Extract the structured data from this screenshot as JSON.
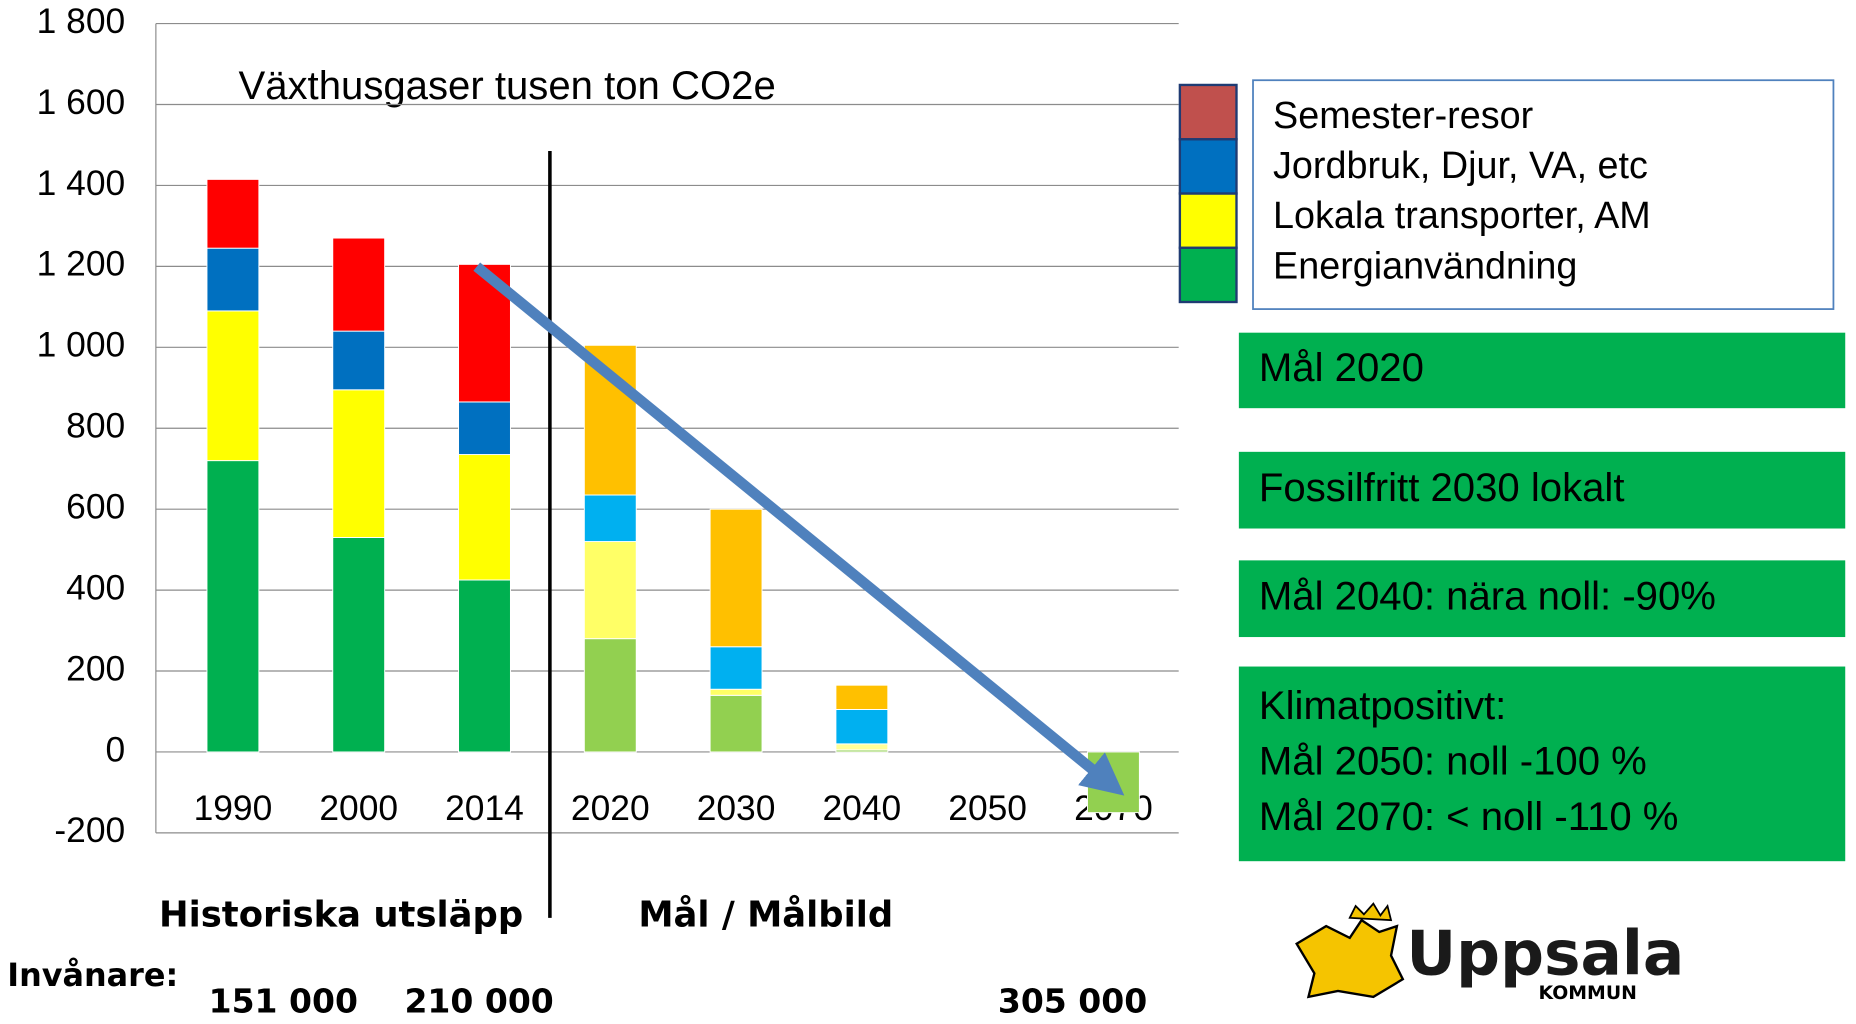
{
  "chart_data": {
    "type": "bar",
    "stacked": true,
    "title": "Växthusgaser tusen ton CO2e",
    "categories": [
      "1990",
      "2000",
      "2014",
      "2020",
      "2030",
      "2040",
      "2050",
      "2070"
    ],
    "series": [
      {
        "name": "Energianvändning",
        "color": "#00b050",
        "colors": [
          "#00b050",
          "#00b050",
          "#00b050",
          "#92d050",
          "#92d050",
          "#92d050",
          "#92d050",
          "#92d050"
        ],
        "values": [
          720,
          530,
          425,
          280,
          140,
          5,
          0,
          -150
        ]
      },
      {
        "name": "Lokala transporter, AM",
        "color": "#ffff00",
        "colors": [
          "#ffff00",
          "#ffff00",
          "#ffff00",
          "#ffff66",
          "#ffff66",
          "#ffff99",
          "#ffff66",
          "#ffff66"
        ],
        "values": [
          370,
          365,
          310,
          240,
          15,
          15,
          0,
          0
        ]
      },
      {
        "name": "Jordbruk, Djur, VA, etc",
        "color": "#0070c0",
        "colors": [
          "#0070c0",
          "#0070c0",
          "#0070c0",
          "#00b0f0",
          "#00b0f0",
          "#00b0f0",
          "#00b0f0",
          "#00b0f0"
        ],
        "values": [
          155,
          145,
          130,
          115,
          105,
          85,
          0,
          0
        ]
      },
      {
        "name": "Semester-resor",
        "color": "#c0504d",
        "colors": [
          "#ff0000",
          "#ff0000",
          "#ff0000",
          "#ffc000",
          "#ffc000",
          "#ffc000",
          "#ffc000",
          "#ffc000"
        ],
        "values": [
          170,
          230,
          340,
          370,
          340,
          60,
          0,
          0
        ]
      }
    ],
    "ylim": [
      -200,
      1800
    ],
    "yticks": [
      -200,
      0,
      200,
      400,
      600,
      800,
      {
        "value": 1000,
        "label": "1 000"
      },
      {
        "value": 1200,
        "label": "1 200"
      },
      {
        "value": 1400,
        "label": "1 400"
      },
      {
        "value": 1600,
        "label": "1 600"
      },
      {
        "value": 1800,
        "label": "1 800"
      }
    ],
    "grid": true,
    "annotations": {
      "historical": "Historiska utsläpp",
      "goals": "Mål / Målbild",
      "population_label": "Invånare:",
      "populations": [
        "151 000",
        "210 000",
        "305 000"
      ]
    },
    "goal_boxes": [
      {
        "lines": [
          "Mål 2020"
        ]
      },
      {
        "lines": [
          "Fossilfritt 2030 lokalt"
        ]
      },
      {
        "lines": [
          "Mål 2040: nära noll: -90%"
        ]
      },
      {
        "lines": [
          "Klimatpositivt:",
          "Mål 2050: noll -100 %",
          "Mål 2070: < noll -110 %"
        ]
      }
    ],
    "logo": {
      "name": "Uppsala",
      "sub": "KOMMUN"
    }
  }
}
